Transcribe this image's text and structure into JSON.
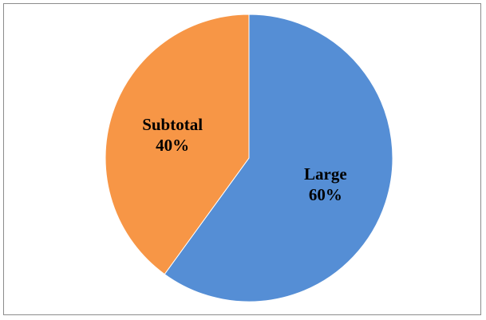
{
  "chart_data": {
    "type": "pie",
    "title": "",
    "slices": [
      {
        "label": "Large",
        "value": 60,
        "percent_label": "60%",
        "color": "#558ed5"
      },
      {
        "label": "Subtotal",
        "value": 40,
        "percent_label": "40%",
        "color": "#f79646"
      }
    ],
    "start_angle_deg": 0,
    "direction": "clockwise",
    "legend": "none",
    "data_labels": "inside"
  }
}
